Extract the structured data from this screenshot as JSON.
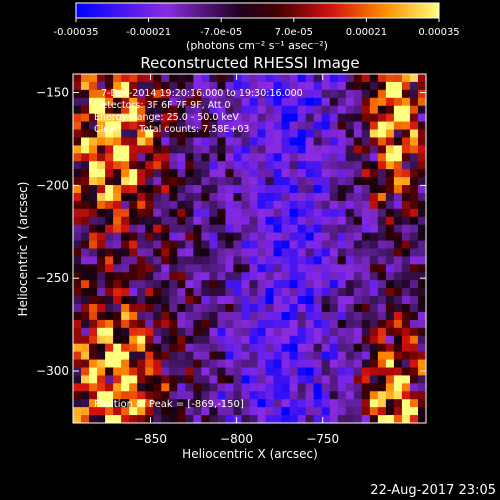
{
  "chart_data": {
    "type": "heatmap",
    "title": "Reconstructed RHESSI Image",
    "xlabel": "Heliocentric X (arcsec)",
    "ylabel": "Heliocentric Y (arcsec)",
    "xlim": [
      -895,
      -690
    ],
    "ylim": [
      -328,
      -140
    ],
    "x_ticks": [
      -850,
      -800,
      -750
    ],
    "y_ticks": [
      -150,
      -200,
      -250,
      -300
    ],
    "colorbar": {
      "min": -0.00035,
      "max": 0.00035,
      "tick_values": [
        -0.00035,
        -0.00021,
        -7e-05,
        7e-05,
        0.00021,
        0.00035
      ],
      "tick_labels": [
        "-0.00035",
        "-0.00021",
        "-7.0e-05",
        "7.0e-05",
        "0.00021",
        "0.00035"
      ],
      "unit_label": "(photons cm⁻² s⁻¹ asec⁻²)"
    },
    "annotations": [
      "7-Dec-2014 19:20:16.000 to 19:30:16.000",
      "Detectors: 3F 6F 7F 9F, Att 0",
      "Energy Range: 25.0 - 50.0 keV",
      "Clean      Total counts: 7.58E+03"
    ],
    "peak_label": "Position of Peak = [-869,-150]",
    "peak": [
      -869,
      -150
    ],
    "timestamp": "22-Aug-2017 23:05"
  }
}
